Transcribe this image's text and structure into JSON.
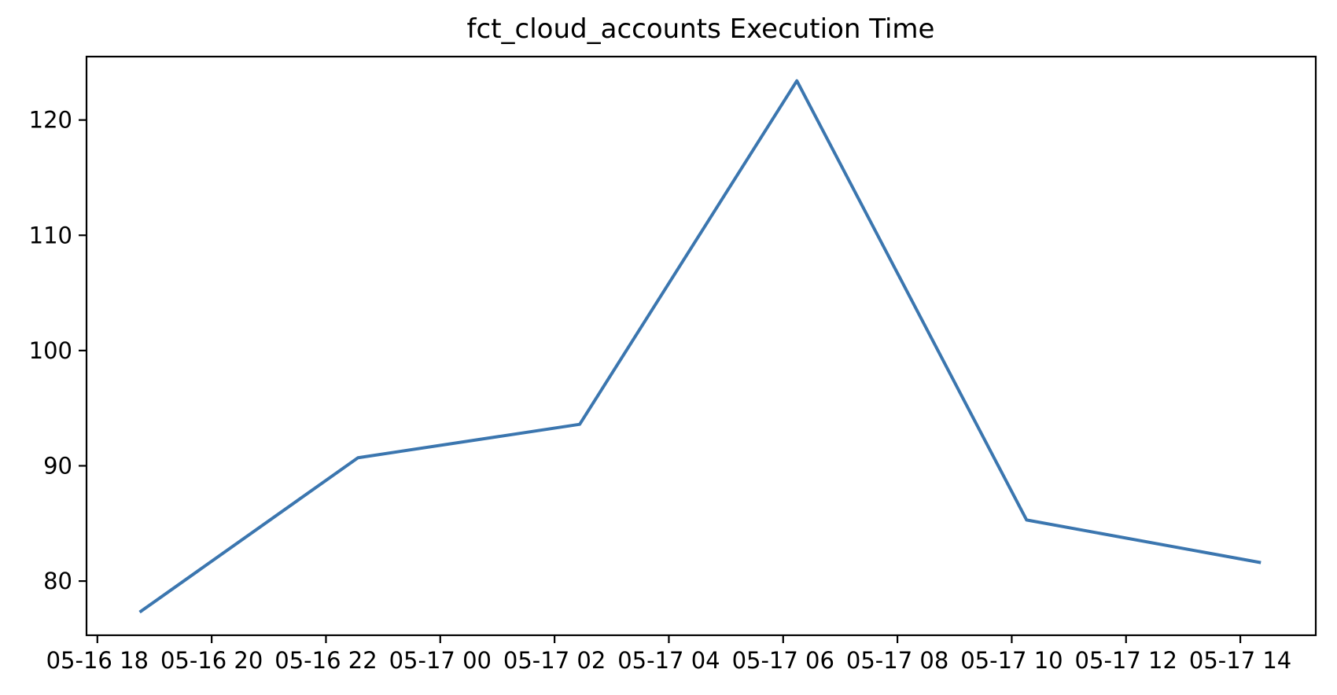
{
  "chart_data": {
    "type": "line",
    "title": "fct_cloud_accounts Execution Time",
    "xlabel": "",
    "ylabel": "",
    "grid": false,
    "legend": "none",
    "background_color": "#ffffff",
    "axis_color": "#000000",
    "ylim": [
      75.3,
      125.5
    ],
    "xlim_hours": [
      -0.19,
      21.32
    ],
    "y_ticks": [
      80,
      90,
      100,
      110,
      120
    ],
    "x_ticks": [
      {
        "hour": 0,
        "label": "05-16 18"
      },
      {
        "hour": 2,
        "label": "05-16 20"
      },
      {
        "hour": 4,
        "label": "05-16 22"
      },
      {
        "hour": 6,
        "label": "05-17 00"
      },
      {
        "hour": 8,
        "label": "05-17 02"
      },
      {
        "hour": 10,
        "label": "05-17 04"
      },
      {
        "hour": 12,
        "label": "05-17 06"
      },
      {
        "hour": 14,
        "label": "05-17 08"
      },
      {
        "hour": 16,
        "label": "05-17 10"
      },
      {
        "hour": 18,
        "label": "05-17 12"
      },
      {
        "hour": 20,
        "label": "05-17 14"
      }
    ],
    "series": [
      {
        "name": "fct_cloud_accounts execution time",
        "color": "#3b76af",
        "line_width": 4,
        "x_hours": [
          0.74,
          4.56,
          8.44,
          12.24,
          16.26,
          20.36
        ],
        "values": [
          77.3,
          90.7,
          93.6,
          123.4,
          85.3,
          81.6
        ]
      }
    ]
  }
}
